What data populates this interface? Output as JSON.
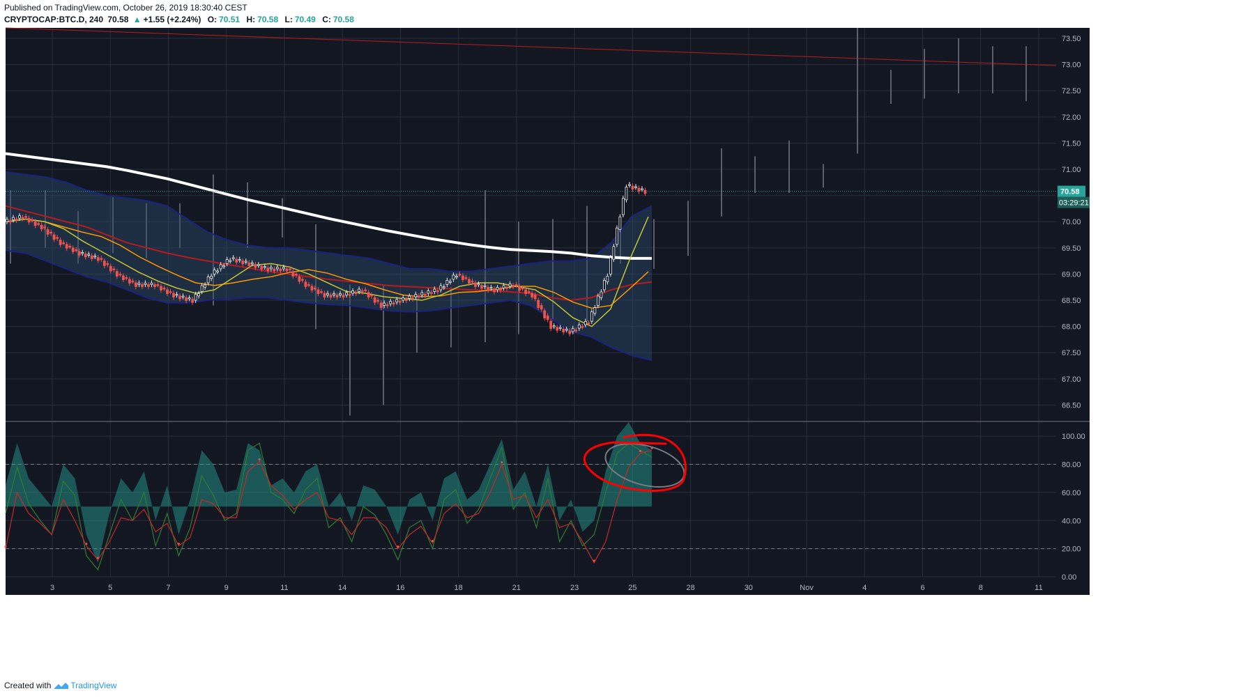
{
  "header": {
    "published": "Published on TradingView.com, October 26, 2019 18:30:40 CEST",
    "symbol": "CRYPTOCAP:BTC.D, 240",
    "last": "70.58",
    "change_arrow": "▲",
    "change": "+1.55 (+2.24%)",
    "o_label": "O:",
    "o": "70.51",
    "h_label": "H:",
    "h": "70.58",
    "l_label": "L:",
    "l": "70.49",
    "c_label": "C:",
    "c": "70.58"
  },
  "footer": {
    "created": "Created with",
    "brand": "TradingView",
    "logo_icon": "tradingview-logo-icon"
  },
  "price_tag": {
    "value": "70.58",
    "countdown": "03:29:21",
    "color": "#26a69a"
  },
  "colors": {
    "background": "#131722",
    "grid": "#2a2e39",
    "text": "#b2b5be",
    "up": "#e8eaed",
    "down": "#ef5350",
    "sma_white": "#ffffff",
    "red_line": "#b71c1c",
    "orange": "#ff9800",
    "yellow": "#c6c631",
    "band": "#1a237e",
    "annotation": "#ff0000",
    "stoch_fill": "#26a69a",
    "stoch_k": "#2e7d32",
    "stoch_d": "#c62828"
  },
  "chart_data": [
    {
      "type": "candlestick",
      "pane": "price",
      "ylim": [
        66.2,
        73.7
      ],
      "y_ticks": [
        "73.50",
        "73.00",
        "72.50",
        "72.00",
        "71.50",
        "71.00",
        "70.50",
        "70.00",
        "69.50",
        "69.00",
        "68.50",
        "68.00",
        "67.50",
        "67.00",
        "66.50"
      ],
      "x_ticks": [
        "3",
        "5",
        "7",
        "9",
        "11",
        "14",
        "16",
        "18",
        "21",
        "23",
        "25",
        "28",
        "30",
        "Nov",
        "4",
        "6",
        "8",
        "11"
      ],
      "last_price": 70.58,
      "sma_white": [
        71.3,
        71.25,
        71.2,
        71.15,
        71.1,
        71.05,
        70.98,
        70.9,
        70.82,
        70.72,
        70.62,
        70.52,
        70.42,
        70.33,
        70.24,
        70.15,
        70.06,
        69.98,
        69.9,
        69.82,
        69.75,
        69.68,
        69.62,
        69.56,
        69.51,
        69.47,
        69.45,
        69.43,
        69.4,
        69.35,
        69.32,
        69.3,
        69.3
      ],
      "sma_red": [
        70.3,
        70.2,
        70.1,
        70.0,
        69.9,
        69.75,
        69.6,
        69.5,
        69.4,
        69.32,
        69.25,
        69.18,
        69.12,
        69.05,
        69.0,
        68.95,
        68.9,
        68.86,
        68.82,
        68.78,
        68.76,
        68.74,
        68.72,
        68.7,
        68.68,
        68.66,
        68.63,
        68.55,
        68.5,
        68.55,
        68.7,
        68.8,
        68.85
      ],
      "bb_upper": [
        70.95,
        70.9,
        70.85,
        70.75,
        70.6,
        70.5,
        70.45,
        70.4,
        70.3,
        70.05,
        69.8,
        69.65,
        69.55,
        69.5,
        69.5,
        69.45,
        69.4,
        69.35,
        69.3,
        69.2,
        69.1,
        69.1,
        69.05,
        69.05,
        69.1,
        69.15,
        69.2,
        69.25,
        69.25,
        69.3,
        69.6,
        70.1,
        70.3
      ],
      "bb_lower": [
        69.45,
        69.4,
        69.25,
        69.1,
        68.95,
        68.85,
        68.7,
        68.55,
        68.45,
        68.45,
        68.5,
        68.52,
        68.55,
        68.55,
        68.5,
        68.45,
        68.42,
        68.4,
        68.35,
        68.3,
        68.28,
        68.3,
        68.35,
        68.4,
        68.45,
        68.5,
        68.4,
        68.15,
        67.9,
        67.8,
        67.6,
        67.45,
        67.35
      ],
      "vol_future_highs": [
        70.95,
        70.4,
        71.4,
        71.25,
        71.55,
        71.1,
        73.7,
        72.9,
        73.3,
        73.5,
        73.35,
        73.35
      ],
      "vol_future_lows": [
        69.25,
        69.35,
        70.1,
        70.55,
        70.55,
        70.65,
        71.3,
        72.25,
        72.35,
        72.45,
        72.45,
        72.3
      ]
    },
    {
      "type": "line",
      "pane": "oscillator",
      "ylim": [
        0,
        100
      ],
      "y_ticks": [
        "100.00",
        "80.00",
        "60.00",
        "40.00",
        "20.00",
        "0.00"
      ],
      "levels": [
        80,
        20
      ],
      "k": [
        45,
        78,
        52,
        40,
        30,
        68,
        58,
        15,
        5,
        30,
        55,
        40,
        60,
        22,
        45,
        15,
        35,
        72,
        58,
        40,
        45,
        90,
        95,
        60,
        55,
        45,
        62,
        70,
        35,
        42,
        25,
        50,
        44,
        30,
        12,
        35,
        40,
        20,
        55,
        62,
        38,
        48,
        70,
        92,
        48,
        60,
        35,
        70,
        25,
        40,
        22,
        30,
        60,
        88,
        95,
        90,
        85
      ],
      "d": [
        20,
        60,
        45,
        38,
        30,
        55,
        40,
        22,
        12,
        25,
        42,
        40,
        48,
        32,
        38,
        22,
        28,
        55,
        52,
        42,
        42,
        75,
        82,
        65,
        58,
        48,
        55,
        60,
        42,
        40,
        30,
        42,
        42,
        35,
        20,
        30,
        36,
        24,
        45,
        52,
        42,
        45,
        60,
        80,
        55,
        58,
        42,
        55,
        35,
        38,
        25,
        10,
        25,
        55,
        78,
        88,
        90
      ],
      "histogram": [
        65,
        95,
        70,
        60,
        50,
        80,
        70,
        30,
        10,
        45,
        70,
        60,
        75,
        40,
        65,
        30,
        55,
        90,
        80,
        60,
        62,
        95,
        90,
        65,
        70,
        60,
        75,
        80,
        50,
        60,
        40,
        65,
        62,
        50,
        30,
        55,
        60,
        40,
        70,
        75,
        55,
        62,
        80,
        98,
        62,
        75,
        50,
        80,
        40,
        55,
        32,
        40,
        75,
        100,
        110,
        95,
        90
      ]
    }
  ],
  "annotation": {
    "shape": "hand-drawn-circle",
    "color": "red"
  }
}
